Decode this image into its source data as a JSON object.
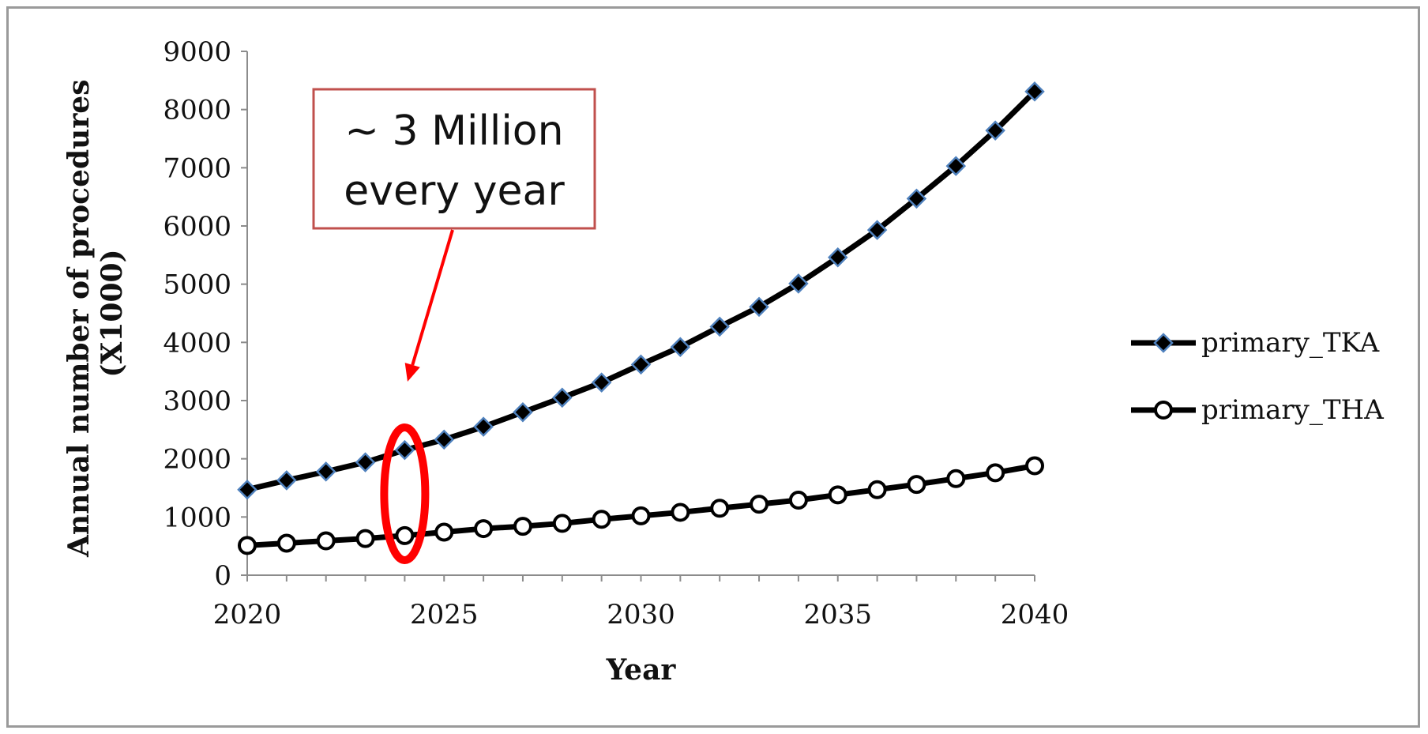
{
  "chart_data": {
    "type": "line",
    "title": "",
    "xlabel": "Year",
    "ylabel": [
      "Annual number of procedures",
      "(X1000)"
    ],
    "xlim": [
      2020,
      2040
    ],
    "ylim": [
      0,
      9000
    ],
    "x_ticks": [
      2020,
      2025,
      2030,
      2035,
      2040
    ],
    "y_ticks": [
      0,
      1000,
      2000,
      3000,
      4000,
      5000,
      6000,
      7000,
      8000,
      9000
    ],
    "grid": false,
    "legend_position": "right",
    "x": [
      2020,
      2021,
      2022,
      2023,
      2024,
      2025,
      2026,
      2027,
      2028,
      2029,
      2030,
      2031,
      2032,
      2033,
      2034,
      2035,
      2036,
      2037,
      2038,
      2039,
      2040
    ],
    "series": [
      {
        "name": "primary_TKA",
        "marker": "diamond",
        "line_color": "#000000",
        "marker_fill": "#000000",
        "marker_edge": "#4f81bd",
        "values": [
          1470,
          1630,
          1780,
          1940,
          2150,
          2330,
          2550,
          2800,
          3050,
          3310,
          3620,
          3920,
          4270,
          4610,
          5010,
          5460,
          5930,
          6470,
          7030,
          7640,
          8310
        ]
      },
      {
        "name": "primary_THA",
        "marker": "circle",
        "line_color": "#000000",
        "marker_fill": "#ffffff",
        "marker_edge": "#000000",
        "values": [
          510,
          550,
          590,
          630,
          680,
          740,
          800,
          840,
          890,
          960,
          1020,
          1080,
          1150,
          1220,
          1290,
          1380,
          1470,
          1560,
          1660,
          1760,
          1880
        ]
      }
    ],
    "annotations": [
      {
        "text_lines": [
          "~ 3 Million",
          "every year"
        ],
        "box_border_color": "#c0504d",
        "arrow_color": "#ff0000",
        "highlight_year": 2024,
        "highlight_color": "#ff0000"
      }
    ]
  }
}
